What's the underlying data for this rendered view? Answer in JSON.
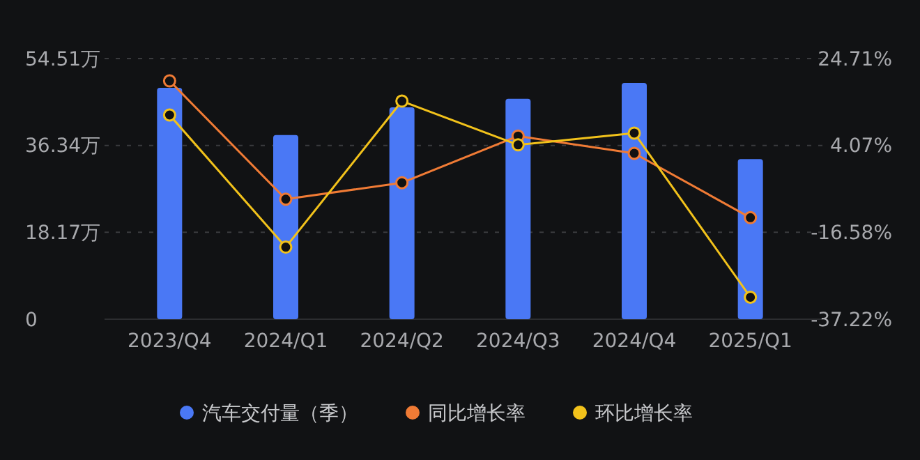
{
  "chart_data": {
    "type": "bar",
    "categories": [
      "2023/Q4",
      "2024/Q1",
      "2024/Q2",
      "2024/Q3",
      "2024/Q4",
      "2025/Q1"
    ],
    "series": [
      {
        "name": "汽车交付量（季）",
        "color": "#4a78f5",
        "values": [
          48.4,
          38.5,
          44.3,
          46.1,
          49.4,
          33.5
        ]
      },
      {
        "name": "同比增长率",
        "type": "line",
        "axis": "y2",
        "color": "#f07b35",
        "values": [
          19.4,
          -8.7,
          -4.8,
          6.3,
          2.2,
          -13.1
        ]
      },
      {
        "name": "环比增长率",
        "type": "line",
        "axis": "y2",
        "color": "#f2c21b",
        "values": [
          11.3,
          -20.1,
          14.6,
          4.2,
          7.0,
          -32.0
        ]
      }
    ],
    "ylim": [
      0,
      54.51
    ],
    "yticks": [
      0,
      {
        "value": 18.17,
        "label": "18.17万"
      },
      {
        "value": 36.34,
        "label": "36.34万"
      },
      {
        "value": 54.51,
        "label": "54.51万"
      }
    ],
    "y2lim": [
      -37.22,
      24.71
    ],
    "y2ticks": [
      {
        "value": -37.22,
        "label": "-37.22%"
      },
      {
        "value": -16.58,
        "label": "-16.58%"
      },
      {
        "value": 4.07,
        "label": "4.07%"
      },
      {
        "value": 24.71,
        "label": "24.71%"
      }
    ],
    "grid": "y",
    "legend": "bottom",
    "marker": "circle",
    "line_style": "solid"
  }
}
